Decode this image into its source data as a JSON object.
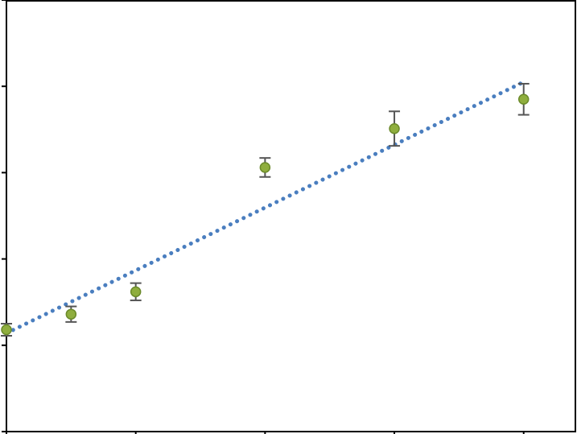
{
  "chart_data": {
    "type": "scatter",
    "title": "",
    "xlabel": "",
    "ylabel": "",
    "xlim": [
      0,
      4.4
    ],
    "ylim": [
      0,
      5
    ],
    "x_ticks": [
      0,
      1,
      2,
      3,
      4
    ],
    "y_ticks": [
      0,
      1,
      2,
      3,
      4,
      5
    ],
    "grid": false,
    "legend": "none",
    "series": [
      {
        "points": [
          {
            "x": 0,
            "y": 1.18,
            "err": 0.07
          },
          {
            "x": 0.5,
            "y": 1.36,
            "err": 0.09
          },
          {
            "x": 1,
            "y": 1.62,
            "err": 0.1
          },
          {
            "x": 2,
            "y": 3.06,
            "err": 0.11
          },
          {
            "x": 3,
            "y": 3.51,
            "err": 0.2
          },
          {
            "x": 4,
            "y": 3.85,
            "err": 0.18
          }
        ]
      }
    ],
    "trendline": {
      "style": "dotted",
      "x": [
        0,
        4
      ],
      "y": [
        1.14,
        4.05
      ]
    },
    "colors": {
      "marker": "#8fae3e",
      "marker_edge": "#6b8a2a",
      "errorbar": "#555555",
      "trendline": "#4a7ebf",
      "axis": "#000000"
    }
  }
}
